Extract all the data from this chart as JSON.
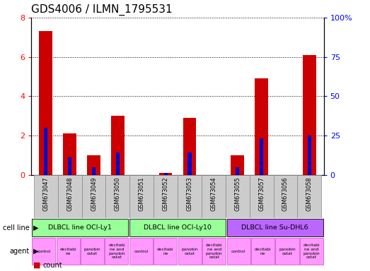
{
  "title": "GDS4006 / ILMN_1795531",
  "samples": [
    "GSM673047",
    "GSM673048",
    "GSM673049",
    "GSM673050",
    "GSM673051",
    "GSM673052",
    "GSM673053",
    "GSM673054",
    "GSM673055",
    "GSM673057",
    "GSM673056",
    "GSM673058"
  ],
  "counts": [
    7.3,
    2.1,
    1.0,
    3.0,
    0.0,
    0.1,
    2.9,
    0.0,
    1.0,
    4.9,
    0.0,
    6.1
  ],
  "percentiles": [
    30,
    11,
    5,
    14,
    0,
    1,
    14,
    0,
    5,
    23,
    0,
    25
  ],
  "ylim_left": [
    0,
    8
  ],
  "ylim_right": [
    0,
    100
  ],
  "yticks_left": [
    0,
    2,
    4,
    6,
    8
  ],
  "yticks_right": [
    0,
    25,
    50,
    75,
    100
  ],
  "yticklabels_right": [
    "0",
    "25",
    "50",
    "75",
    "100%"
  ],
  "bar_color": "#cc0000",
  "percentile_color": "#0000cc",
  "grid_color": "#000000",
  "cell_lines": [
    {
      "label": "DLBCL line OCI-Ly1",
      "start": 0,
      "end": 4,
      "color": "#99ff99"
    },
    {
      "label": "DLBCL line OCI-Ly10",
      "start": 4,
      "end": 8,
      "color": "#99ff99"
    },
    {
      "label": "DLBCL line Su-DHL6",
      "start": 8,
      "end": 12,
      "color": "#bb66ff"
    }
  ],
  "agent_labels": [
    "control",
    "decitabi\nne",
    "panobin\nostat",
    "decitabi\nne and\npanobin\nostat"
  ],
  "agent_color": "#ff99ff",
  "tick_label_bg": "#cccccc",
  "legend_count_color": "#cc0000",
  "legend_percentile_color": "#0000cc",
  "title_fontsize": 11,
  "axis_fontsize": 8,
  "bar_width": 0.55,
  "pct_bar_width": 0.15
}
